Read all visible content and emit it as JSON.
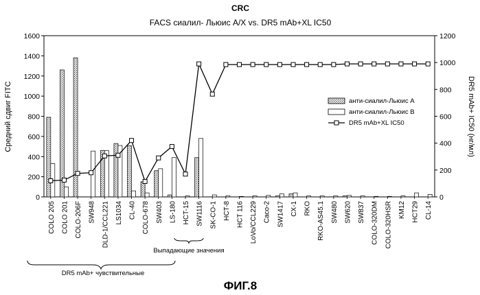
{
  "chart_data": {
    "type": "bar",
    "title": "CRC",
    "subtitle": "FACS сиалил- Льюис A/X vs. DR5 mAb+XL IC50",
    "ylabel": "Средний сдвиг FITC",
    "ylabel_right": "DR5 mAb+ IC50 (нг/мл)",
    "ylim": [
      0,
      1600
    ],
    "ylim_right": [
      0,
      1200
    ],
    "yticks": [
      "0",
      "200",
      "400",
      "600",
      "800",
      "1000",
      "1200",
      "1400",
      "1600"
    ],
    "yticks_right": [
      "0",
      "200",
      "400",
      "600",
      "800",
      "1000",
      "1200"
    ],
    "categories": [
      "COLO 205",
      "COLO 201",
      "COLO-206F",
      "SW948",
      "DLD-1/CCL221",
      "LS1034",
      "CL-40",
      "COLO-678",
      "SW403",
      "LS-180",
      "HCT-15",
      "SW1116",
      "SK-CO-1",
      "HCT-8",
      "HCT 116",
      "LoVo/CCL229",
      "Caco-2",
      "SW1417",
      "CX-1",
      "RKO",
      "RKO-AS45.1",
      "SW480",
      "SW620",
      "SW837",
      "COLO-320DM",
      "COLO-320HSR",
      "KM12",
      "HCT29",
      "CL-14"
    ],
    "series": [
      {
        "name": "анти-сиалил-Льюис A",
        "axis": "left",
        "kind": "bar",
        "pattern": "hatched",
        "values": [
          790,
          1260,
          1380,
          0,
          460,
          530,
          510,
          150,
          260,
          20,
          0,
          390,
          0,
          0,
          0,
          0,
          0,
          10,
          30,
          0,
          0,
          0,
          10,
          0,
          0,
          0,
          0,
          0,
          0
        ]
      },
      {
        "name": "анти-сиалил-Льюис B",
        "axis": "left",
        "kind": "bar",
        "pattern": "open",
        "values": [
          330,
          100,
          0,
          455,
          460,
          510,
          60,
          40,
          280,
          390,
          10,
          580,
          20,
          10,
          5,
          10,
          15,
          30,
          40,
          10,
          10,
          10,
          15,
          10,
          5,
          5,
          10,
          40,
          25
        ]
      },
      {
        "name": "DR5 mAb+XL IC50",
        "axis": "right",
        "kind": "line",
        "marker": "square",
        "values": [
          120,
          125,
          175,
          180,
          305,
          310,
          420,
          115,
          290,
          375,
          170,
          990,
          765,
          985,
          985,
          985,
          985,
          985,
          985,
          985,
          985,
          985,
          990,
          990,
          990,
          990,
          990,
          990,
          990
        ]
      }
    ],
    "legend": "right",
    "grid": false,
    "annotations": {
      "outliers": "Выпадающие значения",
      "sensitive": "DR5 mAb+ чувствительные"
    }
  },
  "figure_label": "ФИГ.8"
}
